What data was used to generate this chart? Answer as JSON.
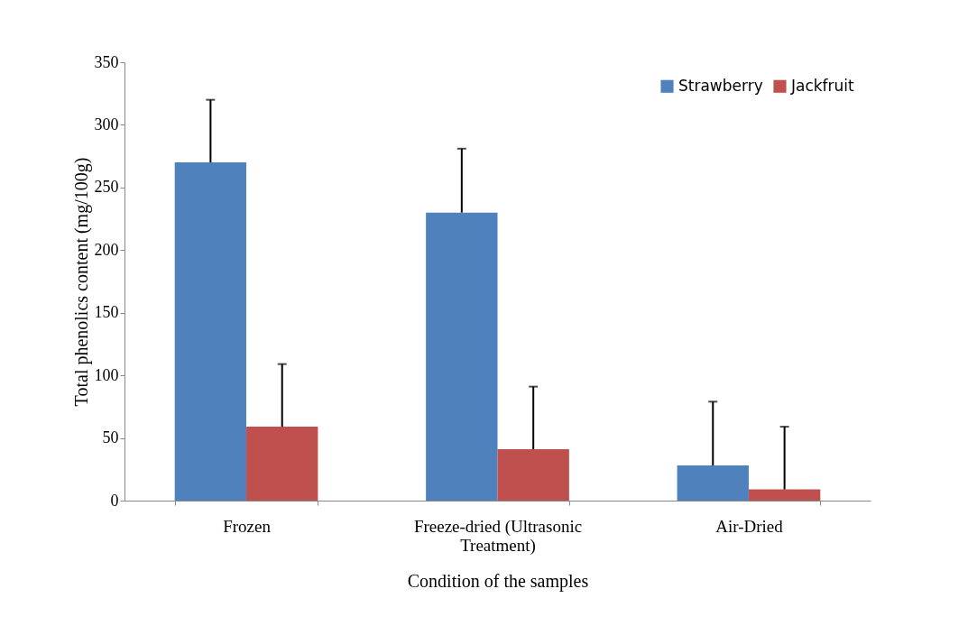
{
  "chart_data": {
    "type": "bar",
    "xlabel": "Condition of the samples",
    "ylabel": "Total phenolics content (mg/100g)",
    "categories": [
      "Frozen",
      "Freeze-dried (Ultrasonic Treatment)",
      "Air-Dried"
    ],
    "series": [
      {
        "name": "Strawberry",
        "color": "#4f81bd",
        "values": [
          270,
          230,
          28
        ],
        "errors": [
          [
            270,
            320
          ],
          [
            230,
            281
          ],
          [
            28,
            79
          ]
        ]
      },
      {
        "name": "Jackfruit",
        "color": "#c0504d",
        "values": [
          59,
          41,
          9
        ],
        "errors": [
          [
            59,
            109
          ],
          [
            41,
            91
          ],
          [
            9,
            59
          ]
        ]
      }
    ],
    "ylim": [
      0,
      350
    ],
    "yticks": [
      0,
      50,
      100,
      150,
      200,
      250,
      300,
      350
    ],
    "grid": false,
    "legend": "top right"
  }
}
